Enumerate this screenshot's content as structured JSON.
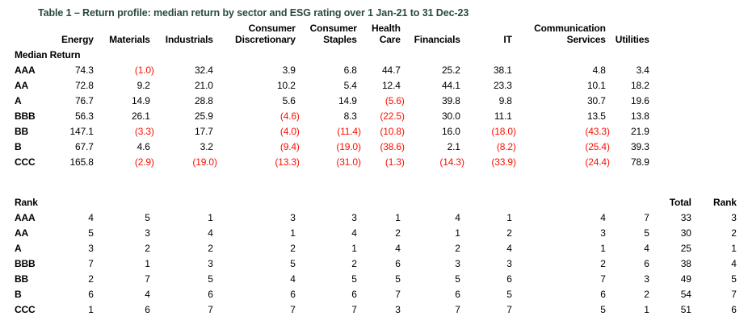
{
  "page": {
    "title": "Table 1 – Return profile: median return by sector and ESG rating over 1 Jan-21 to 31 Dec-23"
  },
  "colors": {
    "title_green": "#294a40",
    "negative_red": "#fa0f00",
    "text_black": "#000000",
    "background": "#ffffff"
  },
  "table": {
    "sector_columns": [
      {
        "header": "Energy"
      },
      {
        "header": "Materials"
      },
      {
        "header": "Industrials"
      },
      {
        "header": "Consumer\nDiscretionary"
      },
      {
        "header": "Consumer\nStaples"
      },
      {
        "header": "Health\nCare"
      },
      {
        "header": "Financials"
      },
      {
        "header": "IT"
      },
      {
        "header": "Communication\nServices"
      },
      {
        "header": "Utilities"
      }
    ],
    "median_return_section": {
      "label": "Median Return",
      "rows": [
        {
          "rating": "AAA",
          "values": [
            "74.3",
            "(1.0)",
            "32.4",
            "3.9",
            "6.8",
            "44.7",
            "25.2",
            "38.1",
            "4.8",
            "3.4"
          ]
        },
        {
          "rating": "AA",
          "values": [
            "72.8",
            "9.2",
            "21.0",
            "10.2",
            "5.4",
            "12.4",
            "44.1",
            "23.3",
            "10.1",
            "18.2"
          ]
        },
        {
          "rating": "A",
          "values": [
            "76.7",
            "14.9",
            "28.8",
            "5.6",
            "14.9",
            "(5.6)",
            "39.8",
            "9.8",
            "30.7",
            "19.6"
          ]
        },
        {
          "rating": "BBB",
          "values": [
            "56.3",
            "26.1",
            "25.9",
            "(4.6)",
            "8.3",
            "(22.5)",
            "30.0",
            "11.1",
            "13.5",
            "13.8"
          ]
        },
        {
          "rating": "BB",
          "values": [
            "147.1",
            "(3.3)",
            "17.7",
            "(4.0)",
            "(11.4)",
            "(10.8)",
            "16.0",
            "(18.0)",
            "(43.3)",
            "21.9"
          ]
        },
        {
          "rating": "B",
          "values": [
            "67.7",
            "4.6",
            "3.2",
            "(9.4)",
            "(19.0)",
            "(38.6)",
            "2.1",
            "(8.2)",
            "(25.4)",
            "39.3"
          ]
        },
        {
          "rating": "CCC",
          "values": [
            "165.8",
            "(2.9)",
            "(19.0)",
            "(13.3)",
            "(31.0)",
            "(1.3)",
            "(14.3)",
            "(33.9)",
            "(24.4)",
            "78.9"
          ]
        }
      ]
    },
    "rank_section": {
      "label": "Rank",
      "total_header": "Total",
      "rank_header": "Rank",
      "rows": [
        {
          "rating": "AAA",
          "values": [
            "4",
            "5",
            "1",
            "3",
            "3",
            "1",
            "4",
            "1",
            "4",
            "7"
          ],
          "total": "33",
          "rank": "3"
        },
        {
          "rating": "AA",
          "values": [
            "5",
            "3",
            "4",
            "1",
            "4",
            "2",
            "1",
            "2",
            "3",
            "5"
          ],
          "total": "30",
          "rank": "2"
        },
        {
          "rating": "A",
          "values": [
            "3",
            "2",
            "2",
            "2",
            "1",
            "4",
            "2",
            "4",
            "1",
            "4"
          ],
          "total": "25",
          "rank": "1"
        },
        {
          "rating": "BBB",
          "values": [
            "7",
            "1",
            "3",
            "5",
            "2",
            "6",
            "3",
            "3",
            "2",
            "6"
          ],
          "total": "38",
          "rank": "4"
        },
        {
          "rating": "BB",
          "values": [
            "2",
            "7",
            "5",
            "4",
            "5",
            "5",
            "5",
            "6",
            "7",
            "3"
          ],
          "total": "49",
          "rank": "5"
        },
        {
          "rating": "B",
          "values": [
            "6",
            "4",
            "6",
            "6",
            "6",
            "7",
            "6",
            "5",
            "6",
            "2"
          ],
          "total": "54",
          "rank": "7"
        },
        {
          "rating": "CCC",
          "values": [
            "1",
            "6",
            "7",
            "7",
            "7",
            "3",
            "7",
            "7",
            "5",
            "1"
          ],
          "total": "51",
          "rank": "6"
        }
      ]
    }
  }
}
